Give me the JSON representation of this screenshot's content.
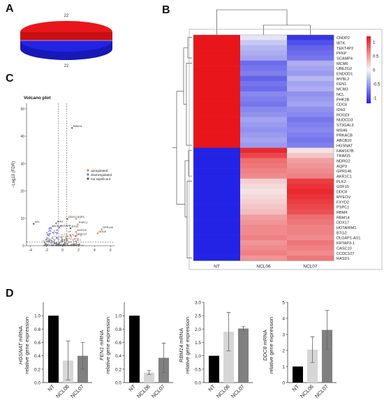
{
  "panels": {
    "a": "A",
    "b": "B",
    "c": "C",
    "d": "D"
  },
  "colors": {
    "up": "#e8161b",
    "down": "#2323e6",
    "white": "#f6f6f6",
    "bar_nt": "#000000",
    "bar_ncl06": "#d6d6d6",
    "bar_ncl07": "#808080",
    "volcano_up": "#e8754a",
    "volcano_down": "#7070e0",
    "volcano_ns": "#555555"
  },
  "chart_data": [
    {
      "type": "pie",
      "panel": "A",
      "slices": [
        {
          "label": "22",
          "value": 22,
          "color": "#e8161b"
        },
        {
          "label": "22",
          "value": 22,
          "color": "#2323e6"
        }
      ]
    },
    {
      "type": "heatmap",
      "panel": "B",
      "columns": [
        "NT",
        "NCL06",
        "NCL07"
      ],
      "rows": [
        "CNDP2",
        "IBTK",
        "TEKT4P2",
        "PFKP",
        "SCAMP4",
        "MCM6",
        "UBE2G2",
        "ENDOD1",
        "MYBL2",
        "FEN1",
        "MCM3",
        "NCL",
        "PHK2B",
        "CDC6",
        "IDH2",
        "ROGDI",
        "NUDCD3",
        "ST3GAL3",
        "MSH6",
        "PRKACB",
        "ABCB10",
        "HGSNAT",
        "FAM167B",
        "TRIM15",
        "NDRG2",
        "AQP3",
        "GPR146",
        "AKR1C1",
        "PLK2",
        "GDF15",
        "DDC8",
        "MYEOV",
        "FXYD2",
        "PSPC1",
        "RBM4",
        "RBM14",
        "DDX17",
        "HOTAIRM1",
        "BTG2",
        "DLGAP1-AS1",
        "KRTAP3-1",
        "CASC10",
        "CCDC107",
        "RASD1"
      ],
      "values": [
        [
          1.15,
          -0.1,
          -1.05
        ],
        [
          1.15,
          -0.25,
          -0.9
        ],
        [
          1.15,
          -0.35,
          -0.8
        ],
        [
          1.15,
          -0.4,
          -0.75
        ],
        [
          1.15,
          -0.45,
          -0.7
        ],
        [
          1.15,
          -0.75,
          -0.4
        ],
        [
          1.15,
          -0.7,
          -0.45
        ],
        [
          1.15,
          -0.65,
          -0.5
        ],
        [
          1.15,
          -0.8,
          -0.35
        ],
        [
          1.15,
          -0.7,
          -0.45
        ],
        [
          1.15,
          -0.75,
          -0.4
        ],
        [
          1.15,
          -0.6,
          -0.55
        ],
        [
          1.15,
          -0.65,
          -0.5
        ],
        [
          1.15,
          -0.7,
          -0.45
        ],
        [
          1.15,
          -0.6,
          -0.55
        ],
        [
          1.15,
          -0.55,
          -0.6
        ],
        [
          1.15,
          -0.45,
          -0.7
        ],
        [
          1.15,
          -0.5,
          -0.65
        ],
        [
          1.15,
          -0.55,
          -0.6
        ],
        [
          1.15,
          -0.5,
          -0.65
        ],
        [
          1.15,
          -0.45,
          -0.7
        ],
        [
          1.15,
          -0.5,
          -0.65
        ],
        [
          -1.15,
          1.05,
          0.1
        ],
        [
          -1.15,
          0.9,
          0.25
        ],
        [
          -1.15,
          0.7,
          0.45
        ],
        [
          -1.15,
          0.65,
          0.5
        ],
        [
          -1.15,
          0.6,
          0.55
        ],
        [
          -1.15,
          0.55,
          0.6
        ],
        [
          -1.15,
          0.2,
          0.95
        ],
        [
          -1.15,
          0.15,
          1.0
        ],
        [
          -1.15,
          0.1,
          1.05
        ],
        [
          -1.15,
          0.15,
          1.0
        ],
        [
          -1.15,
          0.2,
          0.95
        ],
        [
          -1.15,
          0.25,
          0.9
        ],
        [
          -1.15,
          0.3,
          0.85
        ],
        [
          -1.15,
          0.45,
          0.7
        ],
        [
          -1.15,
          0.5,
          0.65
        ],
        [
          -1.15,
          0.55,
          0.6
        ],
        [
          -1.15,
          0.55,
          0.6
        ],
        [
          -1.15,
          0.6,
          0.55
        ],
        [
          -1.15,
          0.5,
          0.65
        ],
        [
          -1.15,
          0.55,
          0.6
        ],
        [
          -1.15,
          0.6,
          0.55
        ],
        [
          -1.15,
          0.5,
          0.65
        ]
      ],
      "legend": {
        "ticks": [
          "1",
          "0.5",
          "0",
          "-0.5",
          "-1"
        ],
        "range": [
          -1.2,
          1.2
        ]
      }
    },
    {
      "type": "scatter",
      "panel": "C",
      "title": "Volcano plot",
      "xlabel": "Log2 FC",
      "ylabel": "−Log10 (FDR)",
      "xticks": [
        "-4",
        "-2",
        "0",
        "2",
        "4",
        "6"
      ],
      "yticks": [
        "0",
        "10",
        "20",
        "30",
        "40",
        "50"
      ],
      "xlim": [
        -4.5,
        6.5
      ],
      "ylim": [
        0,
        52
      ],
      "legend": [
        "upregulated",
        "downregulated",
        "not significant"
      ],
      "labeled_points": [
        {
          "label": "RBM14",
          "x": 1.2,
          "y": 43,
          "cls": "ns"
        },
        {
          "label": "NCL",
          "x": -3.6,
          "y": 8,
          "cls": "ns"
        },
        {
          "label": "GPR146",
          "x": 4.9,
          "y": 6,
          "cls": "up"
        },
        {
          "label": "DDC8",
          "x": 4.4,
          "y": 4.5,
          "cls": "up"
        },
        {
          "label": "DDX17",
          "x": 0.6,
          "y": 9.8,
          "cls": "ns"
        },
        {
          "label": "AQP3",
          "x": 1.7,
          "y": 9.8,
          "cls": "up"
        },
        {
          "label": "IDH2",
          "x": -0.8,
          "y": 8.2,
          "cls": "down"
        },
        {
          "label": "PSPC1",
          "x": 1.9,
          "y": 7.8,
          "cls": "up"
        },
        {
          "label": "ABCB10",
          "x": -1.5,
          "y": 6.5,
          "cls": "down"
        },
        {
          "label": "HGSNAT",
          "x": -0.4,
          "y": 6.6,
          "cls": "down"
        },
        {
          "label": "BTG2",
          "x": 1.0,
          "y": 6.4,
          "cls": "ns"
        },
        {
          "label": "MYEOV",
          "x": 1.7,
          "y": 5.0,
          "cls": "up"
        },
        {
          "label": "CASC10",
          "x": 1.6,
          "y": 3.6,
          "cls": "up"
        }
      ]
    },
    {
      "type": "bar",
      "panel": "D",
      "gene": "HGSNAT",
      "ylabel_gene": "HGSNAT",
      "ylabel_rest": " mRNA",
      "ylabel2": "relative gene expression",
      "categories": [
        "NT",
        "NCL06",
        "NCL07"
      ],
      "values": [
        1.0,
        0.33,
        0.4
      ],
      "errors": [
        0,
        0.29,
        0.2
      ],
      "ylim": [
        0,
        1.2
      ],
      "yticks": [
        "0.0",
        "0.2",
        "0.4",
        "0.6",
        "0.8",
        "1.0"
      ],
      "tick_values": [
        0,
        0.2,
        0.4,
        0.6,
        0.8,
        1.0
      ]
    },
    {
      "type": "bar",
      "panel": "D",
      "gene": "FEN1",
      "ylabel_gene": "FEN1",
      "ylabel_rest": " mRNA",
      "ylabel2": "relative gene expression",
      "categories": [
        "NT",
        "NCL06",
        "NCL07"
      ],
      "values": [
        1.0,
        0.15,
        0.37
      ],
      "errors": [
        0,
        0.03,
        0.22
      ],
      "ylim": [
        0,
        1.2
      ],
      "yticks": [
        "0.0",
        "0.2",
        "0.4",
        "0.6",
        "0.8",
        "1.0"
      ],
      "tick_values": [
        0,
        0.2,
        0.4,
        0.6,
        0.8,
        1.0
      ]
    },
    {
      "type": "bar",
      "panel": "D",
      "gene": "RBM14",
      "ylabel_gene": "RBM14",
      "ylabel_rest": " mRNA",
      "ylabel2": "relative gene expression",
      "categories": [
        "NT",
        "NCL06",
        "NCL07"
      ],
      "values": [
        1.0,
        1.9,
        2.02
      ],
      "errors": [
        0,
        0.72,
        0.07
      ],
      "ylim": [
        0,
        3.0
      ],
      "yticks": [
        "0.0",
        "0.5",
        "1.0",
        "1.5",
        "2.0",
        "2.5",
        "3.0"
      ],
      "tick_values": [
        0,
        0.5,
        1.0,
        1.5,
        2.0,
        2.5,
        3.0
      ]
    },
    {
      "type": "bar",
      "panel": "D",
      "gene": "DDC8",
      "ylabel_gene": "DDC8",
      "ylabel_rest": " mRNA",
      "ylabel2": "relative gene expression",
      "categories": [
        "NT",
        "NCL06",
        "NCL07"
      ],
      "values": [
        1.0,
        2.05,
        3.28
      ],
      "errors": [
        0,
        0.8,
        1.22
      ],
      "ylim": [
        0,
        5
      ],
      "yticks": [
        "0",
        "1",
        "2",
        "3",
        "4",
        "5"
      ],
      "tick_values": [
        0,
        1,
        2,
        3,
        4,
        5
      ]
    }
  ]
}
